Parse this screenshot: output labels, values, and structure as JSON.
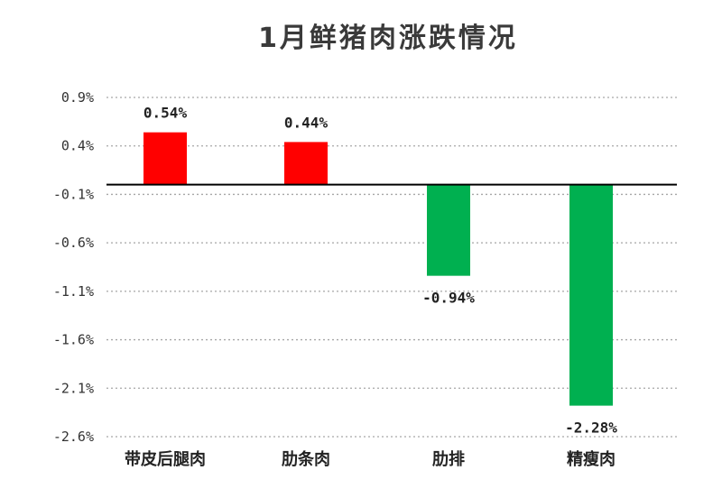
{
  "chart_data": {
    "type": "bar",
    "title": "1月鲜猪肉涨跌情况",
    "categories": [
      "带皮后腿肉",
      "肋条肉",
      "肋排",
      "精瘦肉"
    ],
    "values": [
      0.54,
      0.44,
      -0.94,
      -2.28
    ],
    "data_labels": [
      "0.54%",
      "0.44%",
      "-0.94%",
      "-2.28%"
    ],
    "y_ticks": [
      0.9,
      0.4,
      -0.1,
      -0.6,
      -1.1,
      -1.6,
      -2.1,
      -2.6
    ],
    "y_tick_labels": [
      "0.9%",
      "0.4%",
      "-0.1%",
      "-0.6%",
      "-1.1%",
      "-1.6%",
      "-2.1%",
      "-2.6%"
    ],
    "ylim": [
      -2.6,
      0.9
    ],
    "grid": true,
    "legend": "none",
    "colors": {
      "positive": "#ff0000",
      "negative": "#00b050",
      "grid": "#a6a6a6",
      "axis": "#000000"
    }
  }
}
